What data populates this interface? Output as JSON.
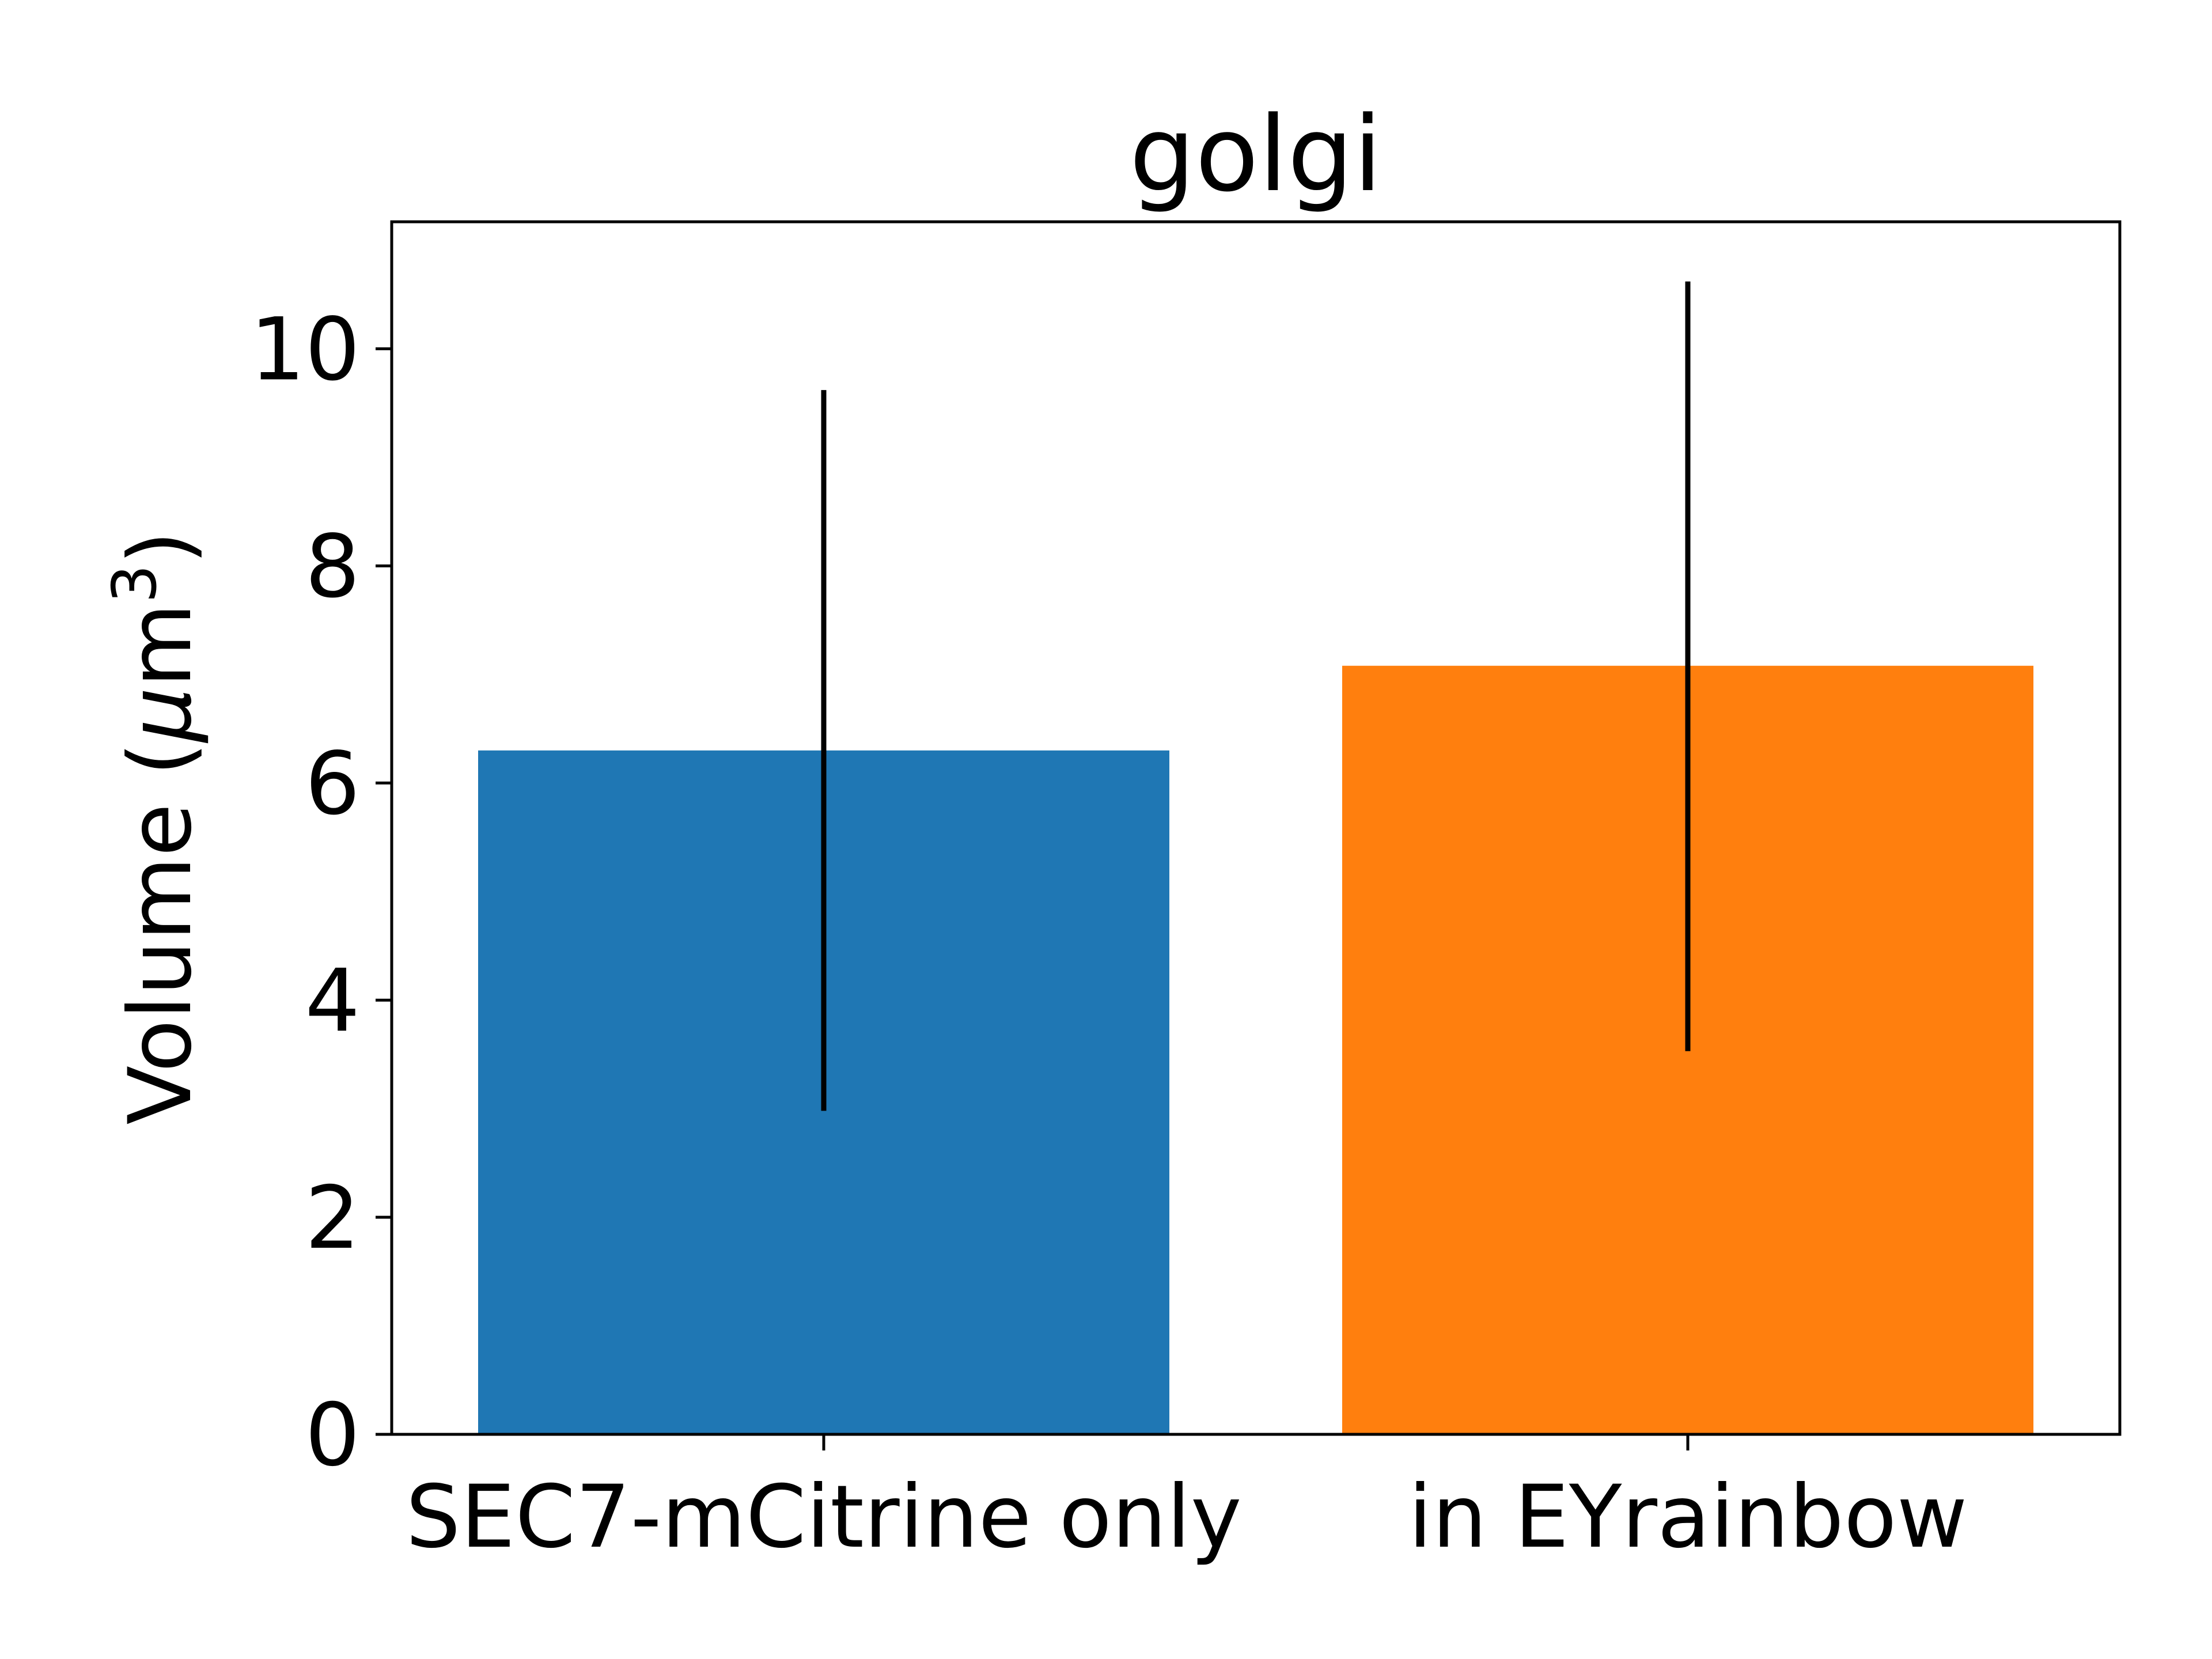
{
  "chart_data": {
    "type": "bar",
    "title": "golgi",
    "ylabel_main": "Volume (",
    "ylabel_mu": "μ",
    "ylabel_unit": "m",
    "ylabel_sup": "3",
    "ylabel_close": ")",
    "categories": [
      "SEC7-mCitrine only",
      "in EYrainbow"
    ],
    "values": [
      6.3,
      7.08
    ],
    "error_low": [
      2.98,
      3.53
    ],
    "error_high": [
      9.62,
      10.62
    ],
    "colors": [
      "#1f77b4",
      "#ff7f0e"
    ],
    "ylim": [
      0,
      11.17
    ],
    "yticks": [
      0,
      2,
      4,
      6,
      8,
      10
    ],
    "grid": false
  }
}
